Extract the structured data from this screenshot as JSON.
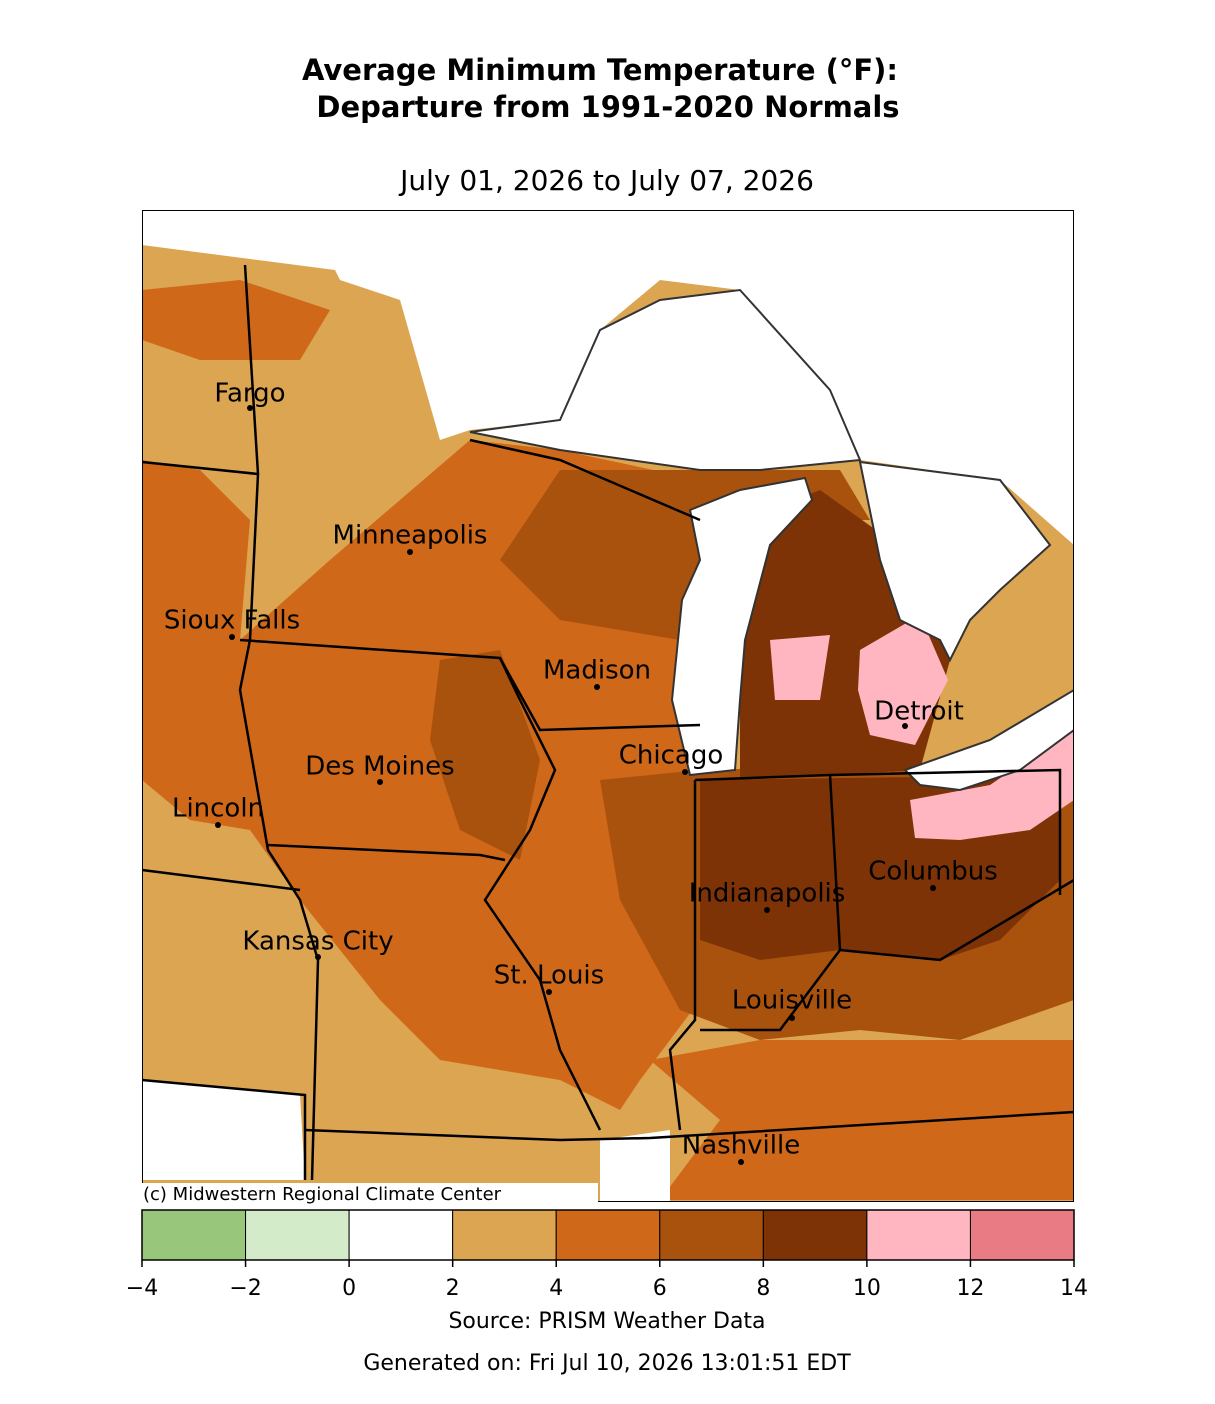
{
  "title": "Average Minimum Temperature (°F):",
  "title_line2": "Departure from 1991-2020 Normals",
  "subtitle": "July 01, 2026 to July 07, 2026",
  "credit": "(c) Midwestern Regional Climate Center",
  "cities": [
    "Fargo",
    "Minneapolis",
    "Sioux Falls",
    "Madison",
    "Des Moines",
    "Lincoln",
    "Chicago",
    "Detroit",
    "Columbus",
    "Indianapolis",
    "Kansas City",
    "St. Louis",
    "Louisville",
    "Nashville"
  ],
  "colorbar": {
    "ticks": [
      {
        "value": -4,
        "label": "−4"
      },
      {
        "value": -2,
        "label": "−2"
      },
      0,
      2,
      4,
      6,
      8,
      10,
      12,
      14
    ],
    "colors": [
      "#98c67a",
      "#d3ebc9",
      "#ffffff",
      "#dca552",
      "#cf6818",
      "#a9520e",
      "#7d3306",
      "#ffb6c1",
      "#e87b84"
    ]
  },
  "source": "Source: PRISM Weather Data",
  "generated": "Generated on: Fri Jul 10, 2026 13:01:51 EDT"
}
